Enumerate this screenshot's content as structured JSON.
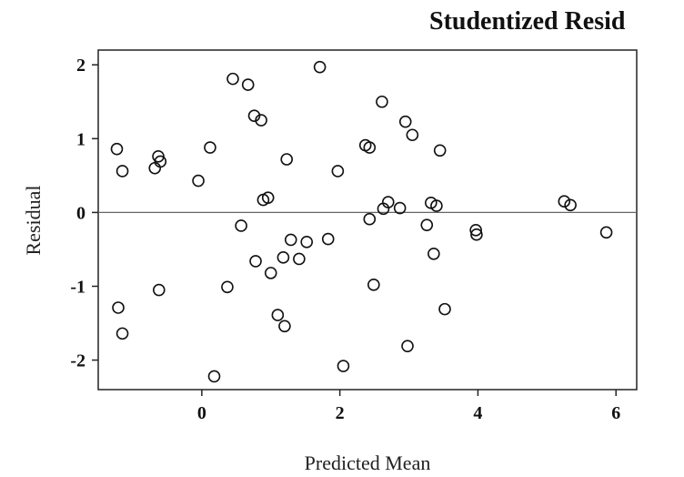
{
  "chart_data": {
    "type": "scatter",
    "title": "Studentized Resid",
    "xlabel": "Predicted Mean",
    "ylabel": "Residual",
    "xlim": [
      -1.5,
      6.3
    ],
    "ylim": [
      -2.4,
      2.2
    ],
    "xticks": [
      0,
      2,
      4,
      6
    ],
    "yticks": [
      -2,
      -1,
      0,
      1,
      2
    ],
    "xtick_labels": [
      "0",
      "2",
      "4",
      "6"
    ],
    "ytick_labels": [
      "-2",
      "-1",
      "0",
      "1",
      "2"
    ],
    "reference_line_y": 0,
    "grid": false,
    "points": [
      {
        "x": -1.23,
        "y": 0.86
      },
      {
        "x": -1.15,
        "y": 0.56
      },
      {
        "x": -1.21,
        "y": -1.29
      },
      {
        "x": -1.15,
        "y": -1.64
      },
      {
        "x": -0.63,
        "y": 0.76
      },
      {
        "x": -0.6,
        "y": 0.69
      },
      {
        "x": -0.68,
        "y": 0.6
      },
      {
        "x": -0.62,
        "y": -1.05
      },
      {
        "x": -0.05,
        "y": 0.43
      },
      {
        "x": 0.12,
        "y": 0.88
      },
      {
        "x": 0.18,
        "y": -2.22
      },
      {
        "x": 0.37,
        "y": -1.01
      },
      {
        "x": 0.45,
        "y": 1.81
      },
      {
        "x": 0.57,
        "y": -0.18
      },
      {
        "x": 0.67,
        "y": 1.73
      },
      {
        "x": 0.76,
        "y": 1.31
      },
      {
        "x": 0.78,
        "y": -0.66
      },
      {
        "x": 0.86,
        "y": 1.25
      },
      {
        "x": 0.89,
        "y": 0.17
      },
      {
        "x": 0.96,
        "y": 0.2
      },
      {
        "x": 1.0,
        "y": -0.82
      },
      {
        "x": 1.1,
        "y": -1.39
      },
      {
        "x": 1.18,
        "y": -0.61
      },
      {
        "x": 1.2,
        "y": -1.54
      },
      {
        "x": 1.23,
        "y": 0.72
      },
      {
        "x": 1.29,
        "y": -0.37
      },
      {
        "x": 1.41,
        "y": -0.63
      },
      {
        "x": 1.52,
        "y": -0.4
      },
      {
        "x": 1.71,
        "y": 1.97
      },
      {
        "x": 1.83,
        "y": -0.36
      },
      {
        "x": 1.97,
        "y": 0.56
      },
      {
        "x": 2.05,
        "y": -2.08
      },
      {
        "x": 2.37,
        "y": 0.91
      },
      {
        "x": 2.43,
        "y": 0.88
      },
      {
        "x": 2.43,
        "y": -0.09
      },
      {
        "x": 2.49,
        "y": -0.98
      },
      {
        "x": 2.61,
        "y": 1.5
      },
      {
        "x": 2.63,
        "y": 0.05
      },
      {
        "x": 2.7,
        "y": 0.14
      },
      {
        "x": 2.87,
        "y": 0.06
      },
      {
        "x": 2.95,
        "y": 1.23
      },
      {
        "x": 2.98,
        "y": -1.81
      },
      {
        "x": 3.05,
        "y": 1.05
      },
      {
        "x": 3.26,
        "y": -0.17
      },
      {
        "x": 3.32,
        "y": 0.13
      },
      {
        "x": 3.36,
        "y": -0.56
      },
      {
        "x": 3.4,
        "y": 0.09
      },
      {
        "x": 3.45,
        "y": 0.84
      },
      {
        "x": 3.52,
        "y": -1.31
      },
      {
        "x": 3.97,
        "y": -0.24
      },
      {
        "x": 3.98,
        "y": -0.3
      },
      {
        "x": 5.25,
        "y": 0.15
      },
      {
        "x": 5.34,
        "y": 0.1
      },
      {
        "x": 5.86,
        "y": -0.27
      }
    ]
  }
}
